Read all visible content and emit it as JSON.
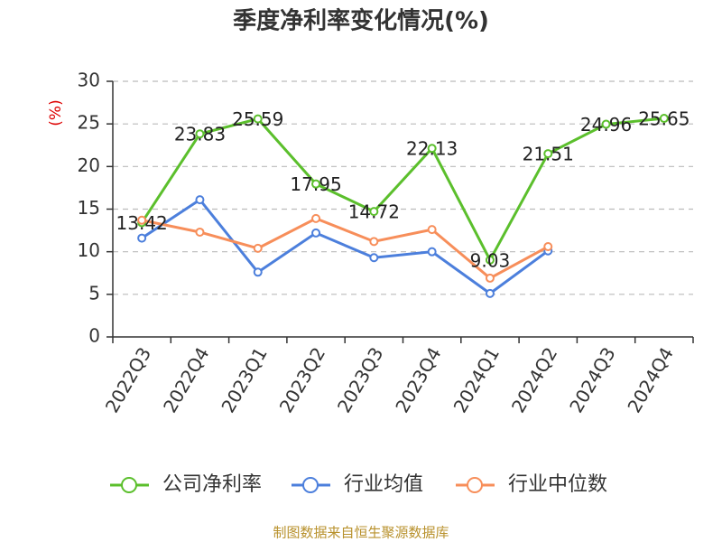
{
  "chart_data": {
    "type": "line",
    "title": "季度净利率变化情况(%)",
    "y_label": "(%)",
    "source": "制图数据来自恒生聚源数据库",
    "categories": [
      "2022Q3",
      "2022Q4",
      "2023Q1",
      "2023Q2",
      "2023Q3",
      "2023Q4",
      "2024Q1",
      "2024Q2",
      "2024Q3",
      "2024Q4"
    ],
    "series": [
      {
        "name": "公司净利率",
        "color": "#5bbf2c",
        "values": [
          13.42,
          23.83,
          25.59,
          17.95,
          14.72,
          22.13,
          9.03,
          21.51,
          24.96,
          25.65
        ],
        "show_labels": true
      },
      {
        "name": "行业均值",
        "color": "#4c7fdc",
        "values": [
          11.6,
          16.1,
          7.6,
          12.2,
          9.3,
          10.0,
          5.1,
          10.1,
          null,
          null
        ]
      },
      {
        "name": "行业中位数",
        "color": "#f78e5a",
        "values": [
          13.7,
          12.3,
          10.4,
          13.9,
          11.2,
          12.6,
          6.9,
          10.6,
          null,
          null
        ]
      }
    ],
    "ylim": [
      0,
      30
    ],
    "yticks": [
      0,
      5,
      10,
      15,
      20,
      25,
      30
    ],
    "grid": true
  }
}
